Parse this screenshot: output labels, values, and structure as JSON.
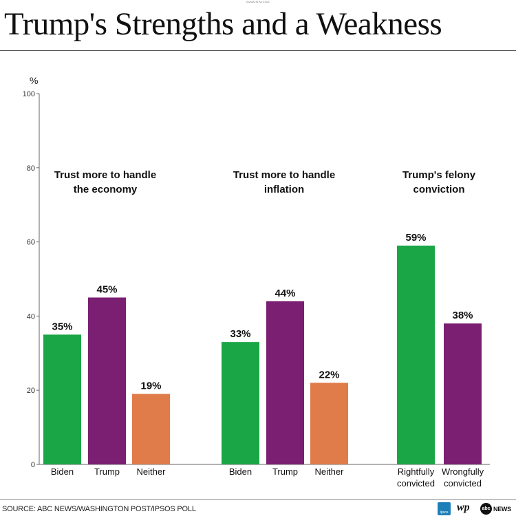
{
  "header": {
    "title": "Trump's Strengths and a Weakness",
    "credit": "ZUMA/SIPA 2024"
  },
  "chart_data": {
    "type": "bar",
    "ylabel": "%",
    "ylim": [
      0,
      100
    ],
    "yticks": [
      "0",
      "20",
      "40",
      "60",
      "80",
      "100"
    ],
    "grid": false,
    "colors": {
      "Biden": "#1aa646",
      "Trump": "#7a1f72",
      "Neither": "#e07b4a",
      "Rightfully convicted": "#1aa646",
      "Wrongfully convicted": "#7a1f72"
    },
    "groups": [
      {
        "title": [
          "Trust more to handle",
          "the economy"
        ],
        "bars": [
          {
            "category": [
              "Biden"
            ],
            "value": 35,
            "label": "35%"
          },
          {
            "category": [
              "Trump"
            ],
            "value": 45,
            "label": "45%"
          },
          {
            "category": [
              "Neither"
            ],
            "value": 19,
            "label": "19%"
          }
        ]
      },
      {
        "title": [
          "Trust more to handle",
          "inflation"
        ],
        "bars": [
          {
            "category": [
              "Biden"
            ],
            "value": 33,
            "label": "33%"
          },
          {
            "category": [
              "Trump"
            ],
            "value": 44,
            "label": "44%"
          },
          {
            "category": [
              "Neither"
            ],
            "value": 22,
            "label": "22%"
          }
        ]
      },
      {
        "title": [
          "Trump's felony",
          "conviction"
        ],
        "bars": [
          {
            "category": [
              "Rightfully",
              "convicted"
            ],
            "value": 59,
            "label": "59%"
          },
          {
            "category": [
              "Wrongfully",
              "convicted"
            ],
            "value": 38,
            "label": "38%"
          }
        ]
      }
    ]
  },
  "footer": {
    "source": "SOURCE: ABC NEWS/WASHINGTON POST/IPSOS POLL",
    "logos": {
      "ipsos": "Ipsos",
      "wp": "wp",
      "abc": "abc",
      "news": "NEWS"
    }
  }
}
